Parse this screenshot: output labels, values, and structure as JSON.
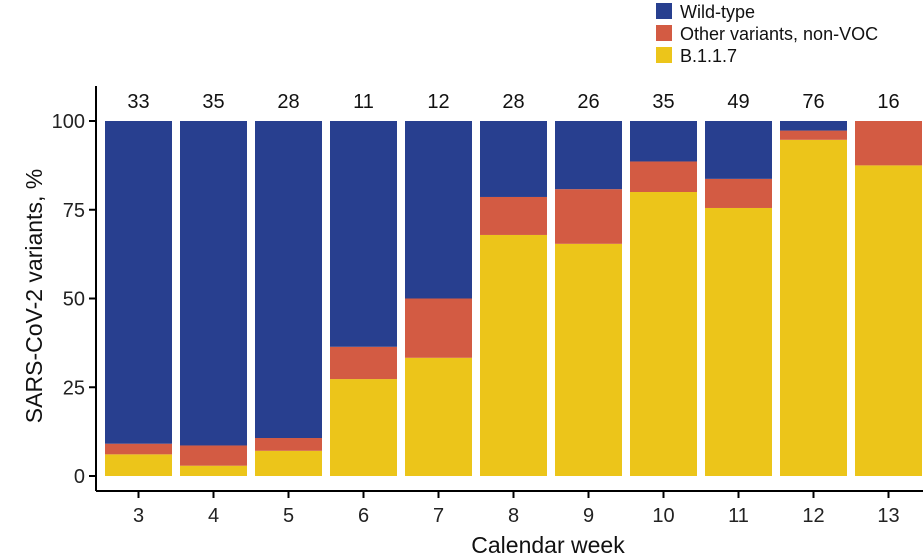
{
  "chart_data": {
    "type": "bar",
    "stacked": true,
    "title": "",
    "xlabel": "Calendar week",
    "ylabel": "SARS-CoV-2 variants, %",
    "ylim": [
      0,
      100
    ],
    "yticks": [
      0,
      25,
      50,
      75,
      100
    ],
    "categories": [
      "3",
      "4",
      "5",
      "6",
      "7",
      "8",
      "9",
      "10",
      "11",
      "12",
      "13"
    ],
    "counts": [
      "33",
      "35",
      "28",
      "11",
      "12",
      "28",
      "26",
      "35",
      "49",
      "76",
      "16"
    ],
    "legend_position": "top-right",
    "grid": false,
    "series": [
      {
        "name": "B.1.1.7",
        "color": "#ECC51A",
        "values": [
          6.1,
          2.9,
          7.1,
          27.3,
          33.3,
          67.9,
          65.4,
          80.0,
          75.5,
          94.7,
          87.5
        ]
      },
      {
        "name": "Other variants, non-VOC",
        "color": "#D35B43",
        "values": [
          3.0,
          5.7,
          3.6,
          9.1,
          16.7,
          10.7,
          15.4,
          8.6,
          8.2,
          2.6,
          12.5
        ]
      },
      {
        "name": "Wild-type",
        "color": "#283F8F",
        "values": [
          90.9,
          91.4,
          89.3,
          63.6,
          50.0,
          21.4,
          19.2,
          11.4,
          16.3,
          2.7,
          0
        ]
      }
    ],
    "legend_order": [
      "Wild-type",
      "Other variants, non-VOC",
      "B.1.1.7"
    ]
  }
}
